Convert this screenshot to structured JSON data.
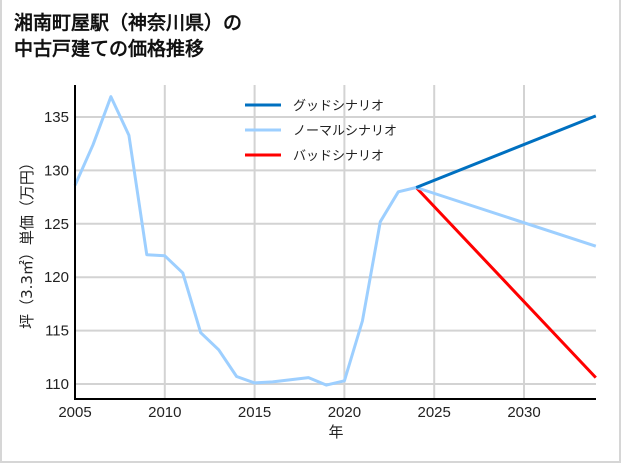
{
  "title": {
    "line1": "湘南町屋駅（神奈川県）の",
    "line2": "中古戸建ての価格推移"
  },
  "chart_data": {
    "type": "line",
    "title": "湘南町屋駅（神奈川県）の中古戸建ての価格推移",
    "xlabel": "年",
    "ylabel": "坪（3.3㎡）単価（万円）",
    "xlim": [
      2005,
      2034
    ],
    "ylim": [
      108.5,
      138
    ],
    "xticks": [
      2005,
      2010,
      2015,
      2020,
      2025,
      2030
    ],
    "yticks": [
      110,
      115,
      120,
      125,
      130,
      135
    ],
    "grid": true,
    "legend_position": "upper center",
    "series": [
      {
        "name": "グッドシナリオ",
        "color": "#0070c0",
        "x": [
          2024,
          2034
        ],
        "y": [
          128.4,
          135.1
        ]
      },
      {
        "name": "ノーマルシナリオ",
        "color": "#9dcfff",
        "x": [
          2005,
          2006,
          2007,
          2008,
          2009,
          2010,
          2011,
          2012,
          2013,
          2014,
          2015,
          2016,
          2017,
          2018,
          2019,
          2020,
          2021,
          2022,
          2023,
          2024,
          2034
        ],
        "y": [
          128.6,
          132.4,
          136.9,
          133.3,
          122.1,
          122.0,
          120.4,
          114.8,
          113.2,
          110.7,
          110.1,
          110.2,
          110.4,
          110.6,
          109.9,
          110.3,
          115.9,
          125.2,
          128.0,
          128.4,
          122.9
        ]
      },
      {
        "name": "バッドシナリオ",
        "color": "#ff0000",
        "x": [
          2024,
          2034
        ],
        "y": [
          128.4,
          110.6
        ]
      }
    ]
  }
}
